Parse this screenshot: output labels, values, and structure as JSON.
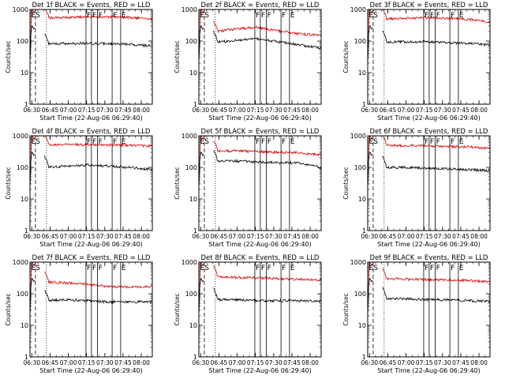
{
  "chart_data": {
    "type": "line",
    "yscale": "log",
    "ylim": [
      1,
      1000
    ],
    "y_ticks": [
      "1",
      "10",
      "100",
      "1000"
    ],
    "x_ticks": [
      "06:30",
      "06:45",
      "07:00",
      "07:15",
      "07:30",
      "07:45",
      "08:00"
    ],
    "x_tick_minutes": [
      390,
      405,
      420,
      435,
      450,
      465,
      480
    ],
    "xlim_minutes": [
      388.5,
      489
    ],
    "xlabel": "Start Time (22-Aug-06 06:29:40)",
    "ylabel": "Counts/sec",
    "series_styles": [
      {
        "name": "Events",
        "color": "#000000"
      },
      {
        "name": "LLD",
        "color": "#e00000"
      }
    ],
    "event_marker_labels": [
      "ES",
      "F",
      "F",
      "F",
      "F",
      "E"
    ],
    "event_marker_minutes": [
      390.2,
      434.5,
      439,
      444,
      456,
      463
    ],
    "dashed_line_minutes": 393,
    "dotted_line_minutes": 402,
    "panels": [
      {
        "title": "Det 1f BLACK = Events, RED = LLD",
        "red": [
          530,
          560,
          590,
          580,
          560,
          490
        ],
        "black": [
          80,
          85,
          85,
          82,
          78,
          70
        ]
      },
      {
        "title": "Det 2f BLACK = Events, RED = LLD",
        "red": [
          200,
          240,
          270,
          210,
          170,
          150
        ],
        "black": [
          90,
          105,
          120,
          95,
          75,
          60
        ]
      },
      {
        "title": "Det 3f BLACK = Events, RED = LLD",
        "red": [
          500,
          520,
          560,
          530,
          490,
          400
        ],
        "black": [
          95,
          95,
          95,
          90,
          85,
          75
        ]
      },
      {
        "title": "Det 4f BLACK = Events, RED = LLD",
        "red": [
          510,
          520,
          530,
          510,
          500,
          470
        ],
        "black": [
          100,
          110,
          120,
          110,
          100,
          85
        ]
      },
      {
        "title": "Det 5f BLACK = Events, RED = LLD",
        "red": [
          330,
          330,
          320,
          300,
          290,
          250
        ],
        "black": [
          160,
          160,
          150,
          140,
          140,
          100
        ]
      },
      {
        "title": "Det 6f BLACK = Events, RED = LLD",
        "red": [
          500,
          490,
          480,
          460,
          450,
          400
        ],
        "black": [
          100,
          100,
          95,
          90,
          85,
          80
        ]
      },
      {
        "title": "Det 7f BLACK = Events, RED = LLD",
        "red": [
          240,
          220,
          200,
          170,
          160,
          170
        ],
        "black": [
          60,
          65,
          60,
          55,
          55,
          55
        ]
      },
      {
        "title": "Det 8f BLACK = Events, RED = LLD",
        "red": [
          350,
          330,
          320,
          300,
          290,
          270
        ],
        "black": [
          65,
          65,
          60,
          60,
          60,
          58
        ]
      },
      {
        "title": "Det 9f BLACK = Events, RED = LLD",
        "red": [
          300,
          290,
          280,
          270,
          260,
          240
        ],
        "black": [
          70,
          70,
          65,
          65,
          60,
          58
        ]
      }
    ]
  }
}
